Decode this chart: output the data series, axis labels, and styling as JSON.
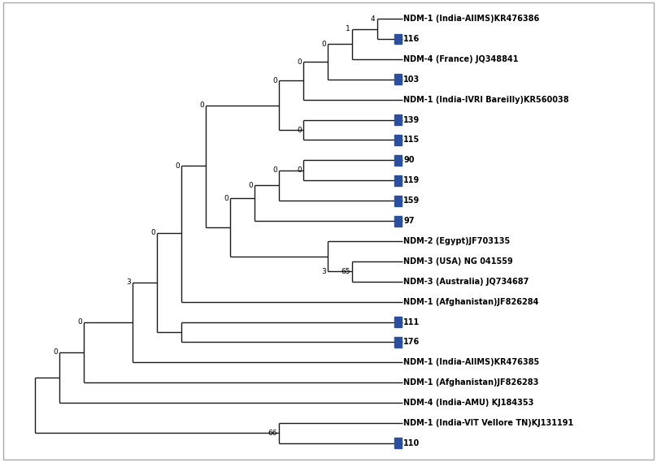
{
  "figure_width": 8.08,
  "figure_height": 5.69,
  "dpi": 100,
  "bg_color": "#ffffff",
  "line_color": "#1a1a1a",
  "line_width": 1.0,
  "square_color": "#2a4fa0",
  "label_fontsize": 7.0,
  "bootstrap_fontsize": 6.5,
  "taxa": [
    {
      "name": "NDM-1 (India-AIIMS)KR476386",
      "y": 1,
      "is_sample": false
    },
    {
      "name": "116",
      "y": 2,
      "is_sample": true
    },
    {
      "name": "NDM-4 (France) JQ348841",
      "y": 3,
      "is_sample": false
    },
    {
      "name": "103",
      "y": 4,
      "is_sample": true
    },
    {
      "name": "NDM-1 (India-IVRI Bareilly)KR560038",
      "y": 5,
      "is_sample": false
    },
    {
      "name": "139",
      "y": 6,
      "is_sample": true
    },
    {
      "name": "115",
      "y": 7,
      "is_sample": true
    },
    {
      "name": "90",
      "y": 8,
      "is_sample": true
    },
    {
      "name": "119",
      "y": 9,
      "is_sample": true
    },
    {
      "name": "159",
      "y": 10,
      "is_sample": true
    },
    {
      "name": "97",
      "y": 11,
      "is_sample": true
    },
    {
      "name": "NDM-2 (Egypt)JF703135",
      "y": 12,
      "is_sample": false
    },
    {
      "name": "NDM-3 (USA) NG 041559",
      "y": 13,
      "is_sample": false
    },
    {
      "name": "NDM-3 (Australia) JQ734687",
      "y": 14,
      "is_sample": false
    },
    {
      "name": "NDM-1 (Afghanistan)JF826284",
      "y": 15,
      "is_sample": false
    },
    {
      "name": "111",
      "y": 16,
      "is_sample": true
    },
    {
      "name": "176",
      "y": 17,
      "is_sample": true
    },
    {
      "name": "NDM-1 (India-AIIMS)KR476385",
      "y": 18,
      "is_sample": false
    },
    {
      "name": "NDM-1 (Afghanistan)JF826283",
      "y": 19,
      "is_sample": false
    },
    {
      "name": "NDM-4 (India-AMU) KJ184353",
      "y": 20,
      "is_sample": false
    },
    {
      "name": "NDM-1 (India-VIT Vellore TN)KJ131191",
      "y": 21,
      "is_sample": false
    },
    {
      "name": "110",
      "y": 22,
      "is_sample": true
    }
  ]
}
